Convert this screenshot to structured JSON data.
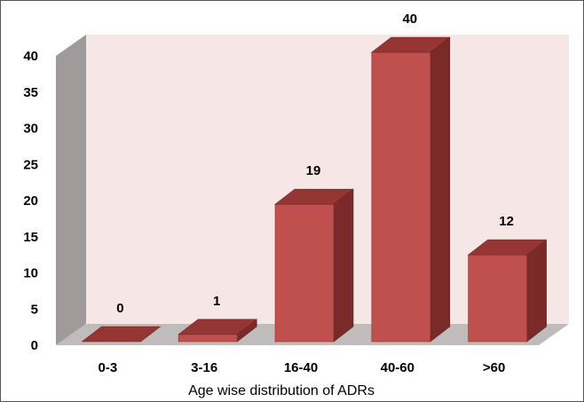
{
  "chart_data": {
    "type": "bar",
    "style": "3d-column",
    "title": "",
    "xlabel": "Age wise distribution of ADRs",
    "ylabel": "",
    "categories": [
      "0-3",
      "3-16",
      "16-40",
      "40-60",
      ">60"
    ],
    "values": [
      0,
      1,
      19,
      40,
      12
    ],
    "data_labels": [
      "0",
      "1",
      "19",
      "40",
      "12"
    ],
    "ylim": [
      0,
      40
    ],
    "yticks": [
      "0",
      "5",
      "10",
      "15",
      "20",
      "25",
      "30",
      "35",
      "40"
    ],
    "grid": false,
    "legend": "none",
    "colors": {
      "bar_front": "#c0504d",
      "bar_side": "#7a2a28",
      "bar_top": "#963634",
      "back_wall": "#f6e6e6",
      "side_wall": "#a09a9a",
      "floor": "#c0bcbc"
    }
  }
}
